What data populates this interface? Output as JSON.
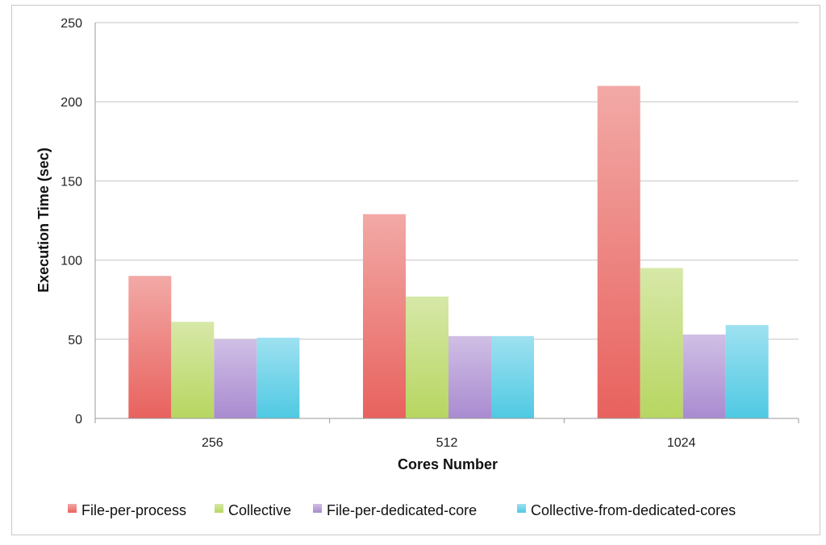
{
  "chart_data": {
    "type": "bar",
    "xlabel": "Cores Number",
    "ylabel": "Execution Time (sec)",
    "categories": [
      "256",
      "512",
      "1024"
    ],
    "ylim": [
      0,
      250
    ],
    "yticks": [
      "0",
      "50",
      "100",
      "150",
      "200",
      "250"
    ],
    "grid": true,
    "legend_position": "bottom",
    "series": [
      {
        "name": "File-per-process",
        "values": [
          90,
          129,
          210
        ],
        "color": "#e8625e"
      },
      {
        "name": "Collective",
        "values": [
          61,
          77,
          95
        ],
        "color": "#b7d661"
      },
      {
        "name": "File-per-dedicated-core",
        "values": [
          50,
          52,
          53
        ],
        "color": "#a98bd0"
      },
      {
        "name": "Collective-from-dedicated-cores",
        "values": [
          51,
          52,
          59
        ],
        "color": "#4fc9e3"
      }
    ]
  }
}
